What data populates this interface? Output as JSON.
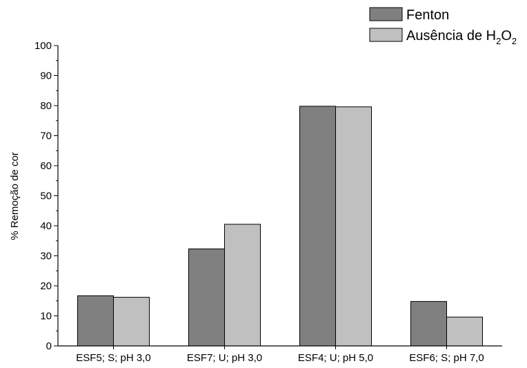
{
  "chart_data": {
    "type": "bar",
    "categories": [
      "ESF5; S; pH 3,0",
      "ESF7; U; pH 3,0",
      "ESF4; U; pH 5,0",
      "ESF6; S; pH 7,0"
    ],
    "series": [
      {
        "name": "Fenton",
        "values": [
          16.7,
          32.3,
          79.8,
          14.8
        ],
        "color": "#808080"
      },
      {
        "name": "Ausência de H2O2",
        "legend_main": "Ausência de H",
        "legend_sub1": "2",
        "legend_mid": "O",
        "legend_sub2": "2",
        "values": [
          16.2,
          40.5,
          79.6,
          9.6
        ],
        "color": "#c0c0c0"
      }
    ],
    "ylabel": "% Remoção de cor",
    "xlabel": "",
    "ylim": [
      0,
      100
    ],
    "yticks": [
      "0",
      "10",
      "20",
      "30",
      "40",
      "50",
      "60",
      "70",
      "80",
      "90",
      "100"
    ],
    "grid": false,
    "legend_position": "top-right"
  }
}
